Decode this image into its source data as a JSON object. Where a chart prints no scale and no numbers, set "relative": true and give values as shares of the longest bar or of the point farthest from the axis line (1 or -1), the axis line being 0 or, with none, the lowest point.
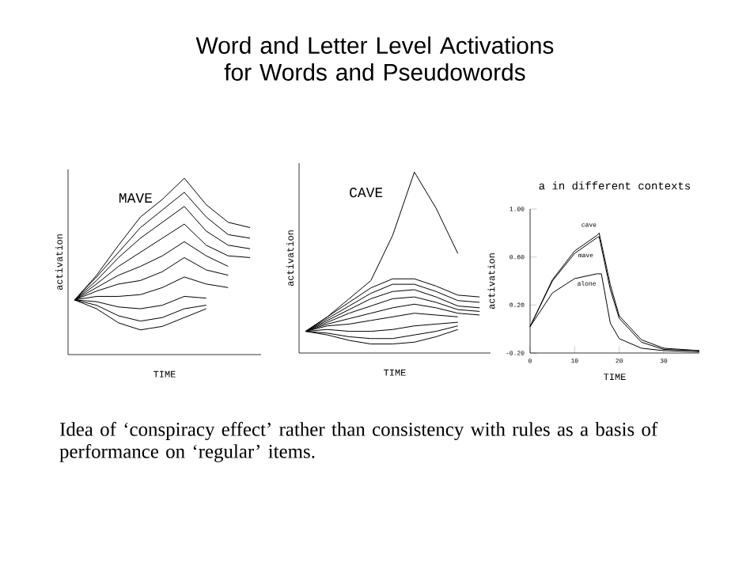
{
  "chart_data": [
    {
      "type": "line",
      "title": "MAVE",
      "xlabel": "TIME",
      "ylabel": "activation",
      "relative": true,
      "annotations": [
        "Word and Letter Level Activations for Words and Pseudowords"
      ],
      "categories": [
        null,
        null,
        null,
        null,
        null,
        null,
        null,
        null,
        null
      ],
      "series": [
        {
          "color": "#000000",
          "values": [
            0.31,
            0.45,
            0.62,
            0.78,
            0.88,
            1.0,
            0.85,
            0.75,
            0.72
          ]
        },
        {
          "color": "#000000",
          "values": [
            0.31,
            0.44,
            0.58,
            0.72,
            0.82,
            0.92,
            0.78,
            0.68,
            0.66
          ]
        },
        {
          "color": "#000000",
          "values": [
            0.31,
            0.42,
            0.55,
            0.66,
            0.75,
            0.84,
            0.7,
            0.62,
            0.6
          ]
        },
        {
          "color": "#000000",
          "values": [
            0.31,
            0.4,
            0.5,
            0.58,
            0.66,
            0.74,
            0.62,
            0.56,
            0.55
          ]
        },
        {
          "color": "#000000",
          "values": [
            0.31,
            0.38,
            0.45,
            0.5,
            0.56,
            0.64,
            0.56,
            0.5,
            null
          ]
        },
        {
          "color": "#000000",
          "values": [
            0.31,
            0.36,
            0.4,
            0.42,
            0.47,
            0.55,
            0.48,
            0.45,
            null
          ]
        },
        {
          "color": "#000000",
          "values": [
            0.31,
            0.33,
            0.33,
            0.34,
            0.38,
            0.44,
            0.4,
            0.38,
            null
          ]
        },
        {
          "color": "#000000",
          "values": [
            0.31,
            0.3,
            0.27,
            0.26,
            0.28,
            0.33,
            0.32,
            null,
            null
          ]
        },
        {
          "color": "#000000",
          "values": [
            0.31,
            0.28,
            0.22,
            0.19,
            0.21,
            0.26,
            0.28,
            null,
            null
          ]
        },
        {
          "color": "#000000",
          "values": [
            0.31,
            0.26,
            0.18,
            0.14,
            0.16,
            0.21,
            0.26,
            null,
            null
          ]
        }
      ]
    },
    {
      "type": "line",
      "title": "CAVE",
      "xlabel": "TIME",
      "ylabel": "activation",
      "relative": true,
      "categories": [
        null,
        null,
        null,
        null,
        null,
        null,
        null,
        null,
        null
      ],
      "series": [
        {
          "color": "#000000",
          "values": [
            0.12,
            0.2,
            0.3,
            0.4,
            0.65,
            1.0,
            0.8,
            0.55,
            null
          ]
        },
        {
          "color": "#000000",
          "values": [
            0.12,
            0.2,
            0.28,
            0.36,
            0.41,
            0.41,
            0.37,
            0.32,
            0.31
          ]
        },
        {
          "color": "#000000",
          "values": [
            0.12,
            0.19,
            0.26,
            0.33,
            0.38,
            0.38,
            0.34,
            0.29,
            0.28
          ]
        },
        {
          "color": "#000000",
          "values": [
            0.12,
            0.18,
            0.24,
            0.3,
            0.34,
            0.35,
            0.31,
            0.26,
            0.25
          ]
        },
        {
          "color": "#000000",
          "values": [
            0.12,
            0.17,
            0.22,
            0.26,
            0.3,
            0.31,
            0.28,
            0.24,
            0.23
          ]
        },
        {
          "color": "#000000",
          "values": [
            0.12,
            0.16,
            0.19,
            0.22,
            0.25,
            0.27,
            0.25,
            0.22,
            0.21
          ]
        },
        {
          "color": "#000000",
          "values": [
            0.12,
            0.15,
            0.16,
            0.18,
            0.2,
            0.22,
            0.21,
            0.2,
            null
          ]
        },
        {
          "color": "#000000",
          "values": [
            0.12,
            0.13,
            0.12,
            0.12,
            0.13,
            0.15,
            0.16,
            0.17,
            null
          ]
        },
        {
          "color": "#000000",
          "values": [
            0.12,
            0.11,
            0.09,
            0.08,
            0.08,
            0.1,
            0.12,
            0.15,
            null
          ]
        },
        {
          "color": "#000000",
          "values": [
            0.12,
            0.1,
            0.07,
            0.05,
            0.05,
            0.06,
            0.09,
            0.13,
            null
          ]
        }
      ]
    },
    {
      "type": "line",
      "title": "a in different contexts",
      "xlabel": "TIME",
      "ylabel": "activation",
      "annotations": [
        "Idea of ‘conspiracy effect’ rather than consistency with rules as a basis of performance on ‘regular’ items."
      ],
      "xlim": [
        0,
        38
      ],
      "xticks": [
        0,
        10,
        20,
        30
      ],
      "ylim": [
        -0.2,
        1.0
      ],
      "yticks": [
        {
          "value": -0.2,
          "label": "-0.20"
        },
        {
          "value": 0.2,
          "label": "0.20"
        },
        {
          "value": 0.6,
          "label": "0.60"
        },
        {
          "value": 1.0,
          "label": "1.00"
        }
      ],
      "series": [
        {
          "name": "cave",
          "color": "#000000",
          "x": [
            0,
            5,
            10,
            15,
            15.5,
            18,
            20,
            25,
            30,
            38
          ],
          "values": [
            0.02,
            0.41,
            0.65,
            0.78,
            0.8,
            0.37,
            0.11,
            -0.09,
            -0.16,
            -0.18
          ]
        },
        {
          "name": "mave",
          "color": "#000000",
          "x": [
            0,
            5,
            10,
            15,
            15.5,
            18,
            20,
            25,
            30,
            38
          ],
          "values": [
            0.02,
            0.4,
            0.63,
            0.76,
            0.77,
            0.33,
            0.09,
            -0.11,
            -0.17,
            -0.18
          ]
        },
        {
          "name": "alone",
          "color": "#000000",
          "x": [
            0,
            5,
            10,
            15,
            16,
            18,
            20,
            25,
            30,
            38
          ],
          "values": [
            0.02,
            0.3,
            0.42,
            0.46,
            0.46,
            0.05,
            -0.08,
            -0.16,
            -0.18,
            -0.19
          ]
        }
      ]
    }
  ]
}
